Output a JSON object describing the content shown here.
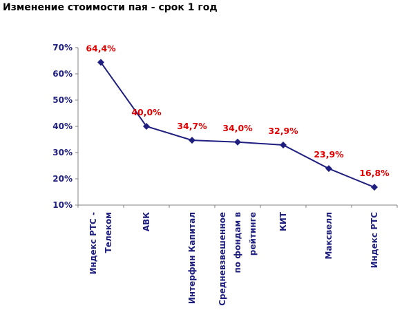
{
  "title": "Изменение стоимости пая - срок 1 год",
  "colors": {
    "line": "#1F1F80",
    "axis_text": "#1F1F80",
    "data_label": "#E00000",
    "axis": "#808080"
  },
  "chart_data": {
    "type": "line",
    "title": "Изменение стоимости пая - срок 1 год",
    "xlabel": "",
    "ylabel": "",
    "ylim": [
      10,
      70
    ],
    "yticks": [
      "10%",
      "20%",
      "30%",
      "40%",
      "50%",
      "60%",
      "70%"
    ],
    "grid": false,
    "legend": "none",
    "categories": [
      "Индекс РТС - Телеком",
      "АВК",
      "Интерфин Капитал",
      "Средневзвешенное по фондам в рейтинге",
      "КИТ",
      "Максвелл",
      "Индекс РТС"
    ],
    "category_lines": [
      [
        "Индекс РТС -",
        "Телеком"
      ],
      [
        "АВК"
      ],
      [
        "Интерфин Капитал"
      ],
      [
        "Средневзвешенное",
        "по фондам в",
        "рейтинге"
      ],
      [
        "КИТ"
      ],
      [
        "Максвелл"
      ],
      [
        "Индекс РТС"
      ]
    ],
    "values": [
      64.4,
      40.0,
      34.7,
      34.0,
      32.9,
      23.9,
      16.8
    ],
    "data_labels": [
      "64,4%",
      "40,0%",
      "34,7%",
      "34,0%",
      "32,9%",
      "23,9%",
      "16,8%"
    ]
  }
}
